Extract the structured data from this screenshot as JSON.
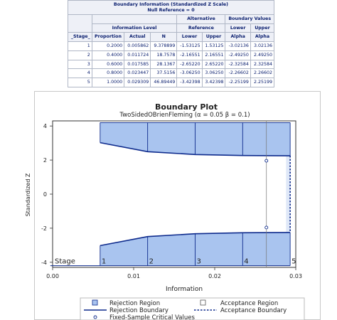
{
  "table": {
    "title": "Boundary Information (Standardized Z Scale)",
    "subtitle": "Null Reference = 0",
    "group_headers": {
      "alternative": "Alternative",
      "boundary_values": "Boundary Values",
      "information_level": "Information Level",
      "reference": "Reference"
    },
    "columns": [
      "_Stage_",
      "Proportion",
      "Actual",
      "N",
      "Lower",
      "Upper",
      "Alpha",
      "Alpha"
    ],
    "boundary_lower": "Lower",
    "boundary_upper": "Upper",
    "rows": [
      [
        "1",
        "0.2000",
        "0.005862",
        "9.378899",
        "-1.53125",
        "1.53125",
        "-3.02136",
        "3.02136"
      ],
      [
        "2",
        "0.4000",
        "0.011724",
        "18.7578",
        "-2.16551",
        "2.16551",
        "-2.49250",
        "2.49250"
      ],
      [
        "3",
        "0.6000",
        "0.017585",
        "28.1367",
        "-2.65220",
        "2.65220",
        "-2.32584",
        "2.32584"
      ],
      [
        "4",
        "0.8000",
        "0.023447",
        "37.5156",
        "-3.06250",
        "3.06250",
        "-2.26602",
        "2.26602"
      ],
      [
        "5",
        "1.0000",
        "0.029309",
        "46.89449",
        "-3.42398",
        "3.42398",
        "-2.25199",
        "2.25199"
      ]
    ]
  },
  "chart_data": {
    "type": "area",
    "title": "Boundary Plot",
    "subtitle": "TwoSidedOBrienFleming (α = 0.05  β = 0.1)",
    "xlabel": "Information",
    "ylabel": "Standardized Z",
    "xlim": [
      0.0,
      0.03
    ],
    "ylim": [
      -4.3,
      4.3
    ],
    "x_ticks": [
      "0.00",
      "0.01",
      "0.02",
      "0.03"
    ],
    "y_ticks": [
      "-4",
      "-2",
      "0",
      "2",
      "4"
    ],
    "stage_label": "Stage",
    "stage_numbers": [
      "1",
      "2",
      "3",
      "4",
      "5"
    ],
    "stages_information": [
      0.005862,
      0.011724,
      0.017585,
      0.023447,
      0.029309
    ],
    "upper_boundary": [
      3.02136,
      2.4925,
      2.32584,
      2.26602,
      2.25199
    ],
    "lower_boundary": [
      -3.02136,
      -2.4925,
      -2.32584,
      -2.26602,
      -2.25199
    ],
    "region_top": 4.2,
    "fixed_sample_information": 0.02638,
    "fixed_sample_critical_values": [
      1.95996,
      -1.95996
    ],
    "acceptance_region_start": 0.0288,
    "colors": {
      "rejection_fill": "#a9c4ef",
      "boundary_line": "#0d2a8c",
      "axis": "#333333",
      "stage_line": "#0d2a8c"
    },
    "legend": {
      "rejection_region": "Rejection Region",
      "acceptance_region": "Acceptance Region",
      "rejection_boundary": "Rejection Boundary",
      "acceptance_boundary": "Acceptance Boundary",
      "fixed_sample": "Fixed-Sample Critical Values"
    }
  }
}
